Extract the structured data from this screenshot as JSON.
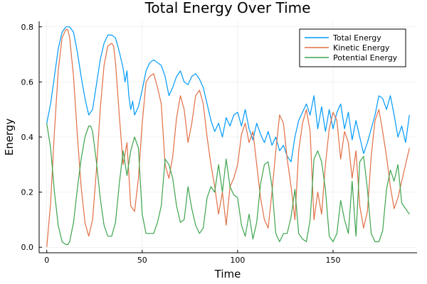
{
  "chart_data": {
    "type": "line",
    "title": "Total Energy Over Time",
    "xlabel": "Time",
    "ylabel": "Energy",
    "xlim": [
      -4,
      194
    ],
    "ylim": [
      -0.02,
      0.82
    ],
    "xticks": [
      0,
      50,
      100,
      150
    ],
    "yticks": [
      0.0,
      0.2,
      0.4,
      0.6,
      0.8
    ],
    "xtick_labels": [
      "0",
      "50",
      "100",
      "150"
    ],
    "ytick_labels": [
      "0.0",
      "0.2",
      "0.4",
      "0.6",
      "0.8"
    ],
    "grid": true,
    "legend_position": "top-right",
    "series": [
      {
        "name": "Total Energy",
        "color": "#009AFA",
        "x": [
          0,
          2,
          4,
          6,
          8,
          10,
          12,
          14,
          16,
          18,
          20,
          22,
          24,
          26,
          28,
          30,
          32,
          34,
          36,
          38,
          40,
          41,
          42,
          43,
          44,
          45,
          46,
          48,
          50,
          52,
          54,
          56,
          58,
          60,
          62,
          64,
          66,
          68,
          70,
          72,
          74,
          76,
          78,
          80,
          82,
          84,
          86,
          88,
          90,
          92,
          94,
          96,
          98,
          100,
          102,
          104,
          106,
          108,
          110,
          112,
          114,
          116,
          118,
          120,
          122,
          124,
          126,
          128,
          130,
          132,
          134,
          136,
          138,
          140,
          142,
          144,
          146,
          148,
          150,
          152,
          154,
          156,
          158,
          160,
          162,
          164,
          166,
          168,
          170,
          172,
          174,
          176,
          178,
          180,
          182,
          184,
          186,
          188,
          190
        ],
        "y": [
          0.45,
          0.52,
          0.62,
          0.72,
          0.78,
          0.8,
          0.8,
          0.78,
          0.71,
          0.62,
          0.54,
          0.48,
          0.5,
          0.59,
          0.68,
          0.74,
          0.77,
          0.77,
          0.76,
          0.71,
          0.65,
          0.6,
          0.64,
          0.55,
          0.5,
          0.53,
          0.48,
          0.51,
          0.57,
          0.64,
          0.67,
          0.68,
          0.67,
          0.66,
          0.62,
          0.55,
          0.58,
          0.62,
          0.64,
          0.6,
          0.59,
          0.62,
          0.63,
          0.61,
          0.58,
          0.52,
          0.46,
          0.42,
          0.45,
          0.4,
          0.47,
          0.44,
          0.48,
          0.49,
          0.44,
          0.5,
          0.43,
          0.39,
          0.45,
          0.41,
          0.38,
          0.42,
          0.37,
          0.4,
          0.35,
          0.37,
          0.33,
          0.31,
          0.4,
          0.46,
          0.49,
          0.52,
          0.48,
          0.55,
          0.43,
          0.51,
          0.42,
          0.5,
          0.43,
          0.49,
          0.52,
          0.43,
          0.49,
          0.39,
          0.46,
          0.4,
          0.34,
          0.38,
          0.43,
          0.48,
          0.55,
          0.54,
          0.5,
          0.55,
          0.48,
          0.4,
          0.44,
          0.38,
          0.48
        ]
      },
      {
        "name": "Kinetic Energy",
        "color": "#E26F46",
        "x": [
          0,
          2,
          4,
          6,
          8,
          10,
          11,
          12,
          14,
          16,
          18,
          20,
          22,
          24,
          26,
          28,
          30,
          32,
          34,
          35,
          36,
          38,
          40,
          42,
          44,
          46,
          48,
          50,
          52,
          54,
          56,
          58,
          60,
          62,
          64,
          66,
          68,
          70,
          72,
          74,
          76,
          78,
          80,
          82,
          84,
          86,
          88,
          90,
          92,
          94,
          96,
          98,
          100,
          102,
          104,
          106,
          108,
          110,
          112,
          114,
          116,
          118,
          120,
          122,
          124,
          126,
          128,
          130,
          132,
          134,
          136,
          138,
          140,
          142,
          144,
          146,
          148,
          150,
          152,
          154,
          156,
          158,
          160,
          162,
          164,
          166,
          168,
          170,
          172,
          174,
          176,
          178,
          180,
          182,
          184,
          186,
          188,
          190
        ],
        "y": [
          0.0,
          0.16,
          0.42,
          0.64,
          0.76,
          0.79,
          0.79,
          0.76,
          0.62,
          0.41,
          0.22,
          0.09,
          0.04,
          0.1,
          0.28,
          0.5,
          0.66,
          0.73,
          0.74,
          0.73,
          0.67,
          0.48,
          0.3,
          0.38,
          0.15,
          0.13,
          0.25,
          0.45,
          0.6,
          0.62,
          0.63,
          0.58,
          0.52,
          0.3,
          0.25,
          0.33,
          0.47,
          0.55,
          0.5,
          0.38,
          0.45,
          0.55,
          0.57,
          0.52,
          0.4,
          0.3,
          0.22,
          0.12,
          0.2,
          0.08,
          0.22,
          0.25,
          0.3,
          0.41,
          0.45,
          0.38,
          0.42,
          0.3,
          0.18,
          0.1,
          0.07,
          0.2,
          0.35,
          0.48,
          0.45,
          0.32,
          0.22,
          0.1,
          0.35,
          0.45,
          0.5,
          0.42,
          0.1,
          0.2,
          0.12,
          0.3,
          0.43,
          0.49,
          0.46,
          0.32,
          0.42,
          0.38,
          0.25,
          0.35,
          0.15,
          0.07,
          0.13,
          0.33,
          0.46,
          0.5,
          0.42,
          0.33,
          0.22,
          0.14,
          0.18,
          0.24,
          0.3,
          0.36
        ]
      },
      {
        "name": "Potential Energy",
        "color": "#3DA44D",
        "x": [
          0,
          2,
          4,
          6,
          8,
          10,
          11,
          12,
          14,
          16,
          18,
          20,
          22,
          23,
          24,
          26,
          28,
          30,
          32,
          34,
          36,
          38,
          40,
          42,
          44,
          46,
          48,
          50,
          52,
          54,
          56,
          58,
          60,
          62,
          64,
          66,
          68,
          70,
          72,
          74,
          76,
          78,
          80,
          82,
          84,
          86,
          88,
          90,
          92,
          94,
          96,
          98,
          100,
          102,
          104,
          106,
          108,
          110,
          112,
          114,
          116,
          118,
          120,
          122,
          124,
          126,
          128,
          130,
          132,
          134,
          136,
          138,
          140,
          142,
          144,
          146,
          148,
          150,
          152,
          154,
          156,
          158,
          160,
          162,
          164,
          166,
          168,
          170,
          172,
          174,
          176,
          178,
          180,
          182,
          184,
          186,
          188,
          190
        ],
        "y": [
          0.45,
          0.36,
          0.2,
          0.08,
          0.02,
          0.01,
          0.01,
          0.02,
          0.09,
          0.21,
          0.32,
          0.4,
          0.44,
          0.44,
          0.42,
          0.31,
          0.18,
          0.08,
          0.04,
          0.04,
          0.09,
          0.23,
          0.35,
          0.26,
          0.35,
          0.4,
          0.36,
          0.12,
          0.05,
          0.05,
          0.05,
          0.09,
          0.15,
          0.32,
          0.3,
          0.25,
          0.15,
          0.09,
          0.1,
          0.22,
          0.14,
          0.08,
          0.05,
          0.07,
          0.18,
          0.22,
          0.2,
          0.3,
          0.2,
          0.32,
          0.22,
          0.19,
          0.18,
          0.08,
          0.04,
          0.12,
          0.03,
          0.09,
          0.23,
          0.3,
          0.31,
          0.22,
          0.05,
          0.02,
          0.05,
          0.05,
          0.11,
          0.21,
          0.05,
          0.03,
          0.02,
          0.1,
          0.32,
          0.35,
          0.31,
          0.21,
          0.04,
          0.02,
          0.05,
          0.17,
          0.1,
          0.05,
          0.24,
          0.04,
          0.31,
          0.33,
          0.21,
          0.05,
          0.02,
          0.02,
          0.06,
          0.21,
          0.28,
          0.24,
          0.3,
          0.16,
          0.14,
          0.12
        ]
      }
    ]
  }
}
